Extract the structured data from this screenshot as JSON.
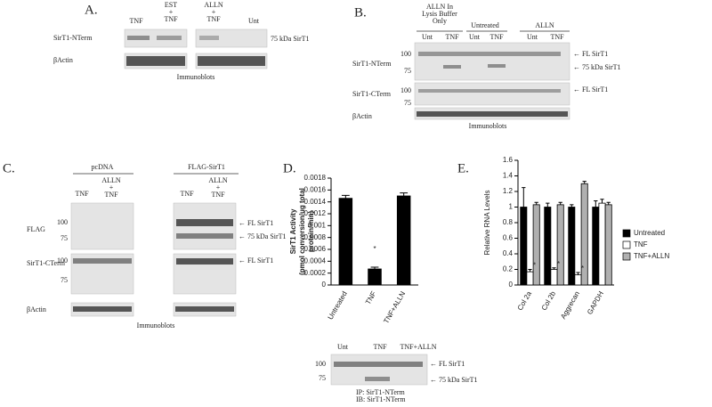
{
  "panels": {
    "a": {
      "label": "A.",
      "lanes": [
        [
          "TNF"
        ],
        [
          "EST",
          "+",
          "TNF"
        ],
        [
          "ALLN",
          "+",
          "TNF"
        ],
        [
          "Unt"
        ]
      ],
      "rows": [
        "SirT1-NTerm",
        "βActin"
      ],
      "band_labels": [
        "75 kDa SirT1"
      ],
      "footer": "Immunoblots"
    },
    "b": {
      "label": "B.",
      "groups": [
        [
          "ALLN In",
          "Lysis Buffer",
          "Only"
        ],
        [
          "Untreated"
        ],
        [
          "ALLN"
        ]
      ],
      "lanes": [
        "Unt",
        "TNF",
        "Unt",
        "TNF",
        "Unt",
        "TNF"
      ],
      "rows": [
        "SirT1-NTerm",
        "SirT1-CTerm",
        "βActin"
      ],
      "markers": [
        "100",
        "75",
        "100",
        "75"
      ],
      "band_labels": [
        "FL SirT1",
        "75 kDa SirT1",
        "FL SirT1"
      ],
      "footer": "Immunoblots"
    },
    "c": {
      "label": "C.",
      "groups": [
        "pcDNA",
        "FLAG-SirT1"
      ],
      "lanes": [
        [
          "TNF"
        ],
        [
          "ALLN",
          "+",
          "TNF"
        ],
        [
          "TNF"
        ],
        [
          "ALLN",
          "+",
          "TNF"
        ]
      ],
      "rows": [
        "FLAG",
        "SirT1-CTerm",
        "βActin"
      ],
      "markers": [
        "100",
        "75",
        "100",
        "75"
      ],
      "band_labels": [
        "FL SirT1",
        "75 kDa SirT1",
        "FL SirT1"
      ],
      "footer": "Immunoblots"
    },
    "d_blot": {
      "lanes": [
        "Unt",
        "TNF",
        "TNF+ALLN"
      ],
      "markers": [
        "100",
        "75"
      ],
      "band_labels": [
        "FL SirT1",
        "75 kDa SirT1"
      ],
      "caption": [
        "IP: SirT1-NTerm",
        "IB: SirT1-NTerm"
      ]
    }
  },
  "chart_data": [
    {
      "type": "bar",
      "panel_label": "D.",
      "ylabel": [
        "SirT1 Activity",
        "(pmol conversion/ug total",
        "protein/min)"
      ],
      "categories": [
        "Untreated",
        "TNF",
        "TNF+ALLN"
      ],
      "values": [
        0.00146,
        0.00027,
        0.0015
      ],
      "errors": [
        5e-05,
        3e-05,
        5e-05
      ],
      "color": "#000000",
      "ylim": [
        0,
        0.0018
      ],
      "yticks": [
        0,
        0.0002,
        0.0004,
        0.0006,
        0.0008,
        0.001,
        0.0012,
        0.0014,
        0.0016,
        0.0018
      ],
      "annotations": [
        "*"
      ]
    },
    {
      "type": "bar",
      "panel_label": "E.",
      "ylabel": [
        "Relative RNA Levels"
      ],
      "categories": [
        "Col 2a",
        "Col 2b",
        "Aggrecan",
        "GAPDH"
      ],
      "series": [
        {
          "name": "Untreated",
          "color": "#000000",
          "values": [
            1.0,
            1.0,
            1.0,
            1.0
          ],
          "errors": [
            0.25,
            0.05,
            0.03,
            0.08
          ]
        },
        {
          "name": "TNF",
          "color": "#ffffff",
          "values": [
            0.17,
            0.2,
            0.13,
            1.05
          ],
          "errors": [
            0.03,
            0.02,
            0.03,
            0.05
          ]
        },
        {
          "name": "TNF+ALLN",
          "color": "#b0b0b0",
          "values": [
            1.03,
            1.03,
            1.3,
            1.03
          ],
          "errors": [
            0.03,
            0.03,
            0.03,
            0.03
          ]
        }
      ],
      "ylim": [
        0,
        1.6
      ],
      "yticks": [
        0,
        0.2,
        0.4,
        0.6,
        0.8,
        1,
        1.2,
        1.4,
        1.6
      ],
      "legend": "right",
      "annotations": [
        "*",
        "*",
        "*"
      ]
    }
  ]
}
